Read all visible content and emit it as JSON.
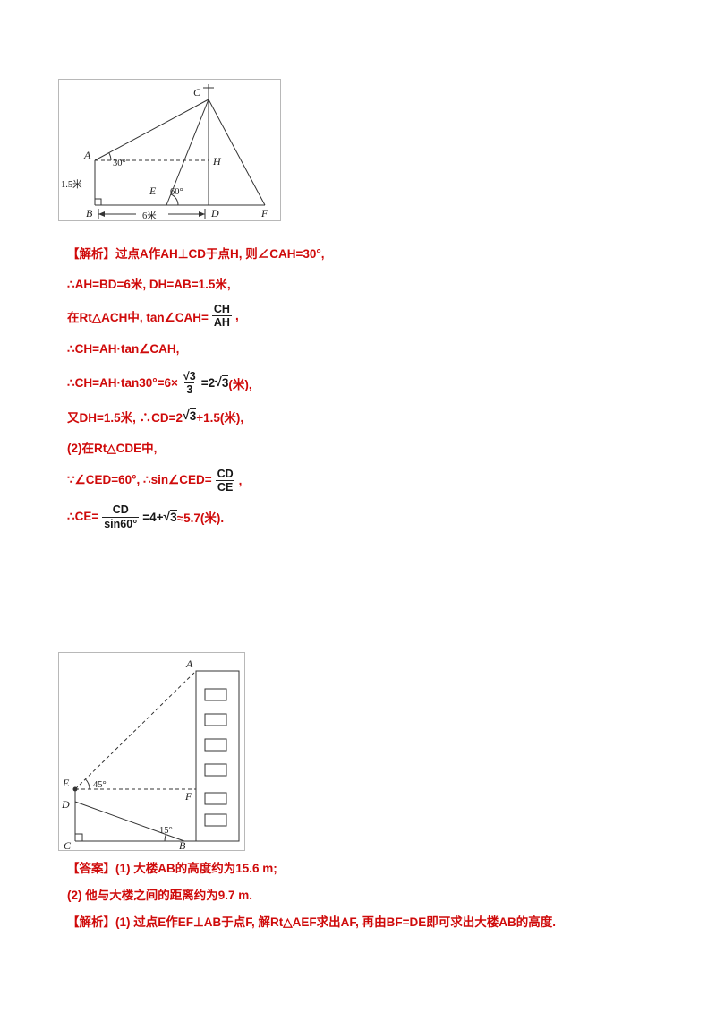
{
  "colors": {
    "solution_red": "#cf0a0a",
    "formula_black": "#161616",
    "diagram_stroke": "#333333"
  },
  "diagram1": {
    "labels": {
      "C": "C",
      "A": "A",
      "H": "H",
      "E": "E",
      "B": "B",
      "D": "D",
      "F": "F",
      "angle_a": "30°",
      "angle_e": "60°",
      "height": "1.5米",
      "base": "6米"
    }
  },
  "solution1": {
    "lines": [
      [
        {
          "t": "text",
          "v": "【解析】过点A作AH⊥CD于点H, 则∠CAH=30°,"
        }
      ],
      [
        {
          "t": "text",
          "v": "∴AH=BD=6米, DH=AB=1.5米,"
        }
      ],
      [
        {
          "t": "text",
          "v": "在Rt△ACH中, tan∠CAH="
        },
        {
          "t": "frac",
          "num": "CH",
          "den": "AH"
        },
        {
          "t": "text",
          "v": ","
        }
      ],
      [
        {
          "t": "text",
          "v": "∴CH=AH·tan∠CAH,"
        }
      ],
      [
        {
          "t": "text",
          "v": "∴CH=AH·tan30°=6×"
        },
        {
          "t": "frac",
          "num": "√3",
          "den": "3"
        },
        {
          "t": "math",
          "v": "=2"
        },
        {
          "t": "sqrt",
          "v": "3"
        },
        {
          "t": "text",
          "v": "(米),"
        }
      ],
      [
        {
          "t": "text",
          "v": "又DH=1.5米, ∴CD=2"
        },
        {
          "t": "sqrt",
          "v": "3"
        },
        {
          "t": "text",
          "v": "+1.5(米),"
        }
      ],
      [
        {
          "t": "text",
          "v": "(2)在Rt△CDE中,"
        }
      ],
      [
        {
          "t": "text",
          "v": "∵∠CED=60°, ∴sin∠CED="
        },
        {
          "t": "frac",
          "num": "CD",
          "den": "CE"
        },
        {
          "t": "text",
          "v": ","
        }
      ],
      [
        {
          "t": "text",
          "v": "∴CE="
        },
        {
          "t": "frac",
          "num": "CD",
          "den": "sin60°"
        },
        {
          "t": "math",
          "v": "=4+"
        },
        {
          "t": "sqrt",
          "v": "3"
        },
        {
          "t": "text",
          "v": "≈5.7(米)."
        }
      ]
    ]
  },
  "diagram2": {
    "labels": {
      "A": "A",
      "E": "E",
      "F": "F",
      "D": "D",
      "C": "C",
      "B": "B",
      "angle_e": "45°",
      "angle_b": "15°"
    }
  },
  "solution2": {
    "lines": [
      [
        {
          "t": "text",
          "v": "【答案】(1) 大楼AB的高度约为15.6 m;"
        }
      ],
      [
        {
          "t": "text",
          "v": "(2) 他与大楼之间的距离约为9.7 m."
        }
      ],
      [
        {
          "t": "text",
          "v": "【解析】(1) 过点E作EF⊥AB于点F, 解Rt△AEF求出AF, 再由BF=DE即可求出大楼AB的高度."
        }
      ]
    ]
  }
}
